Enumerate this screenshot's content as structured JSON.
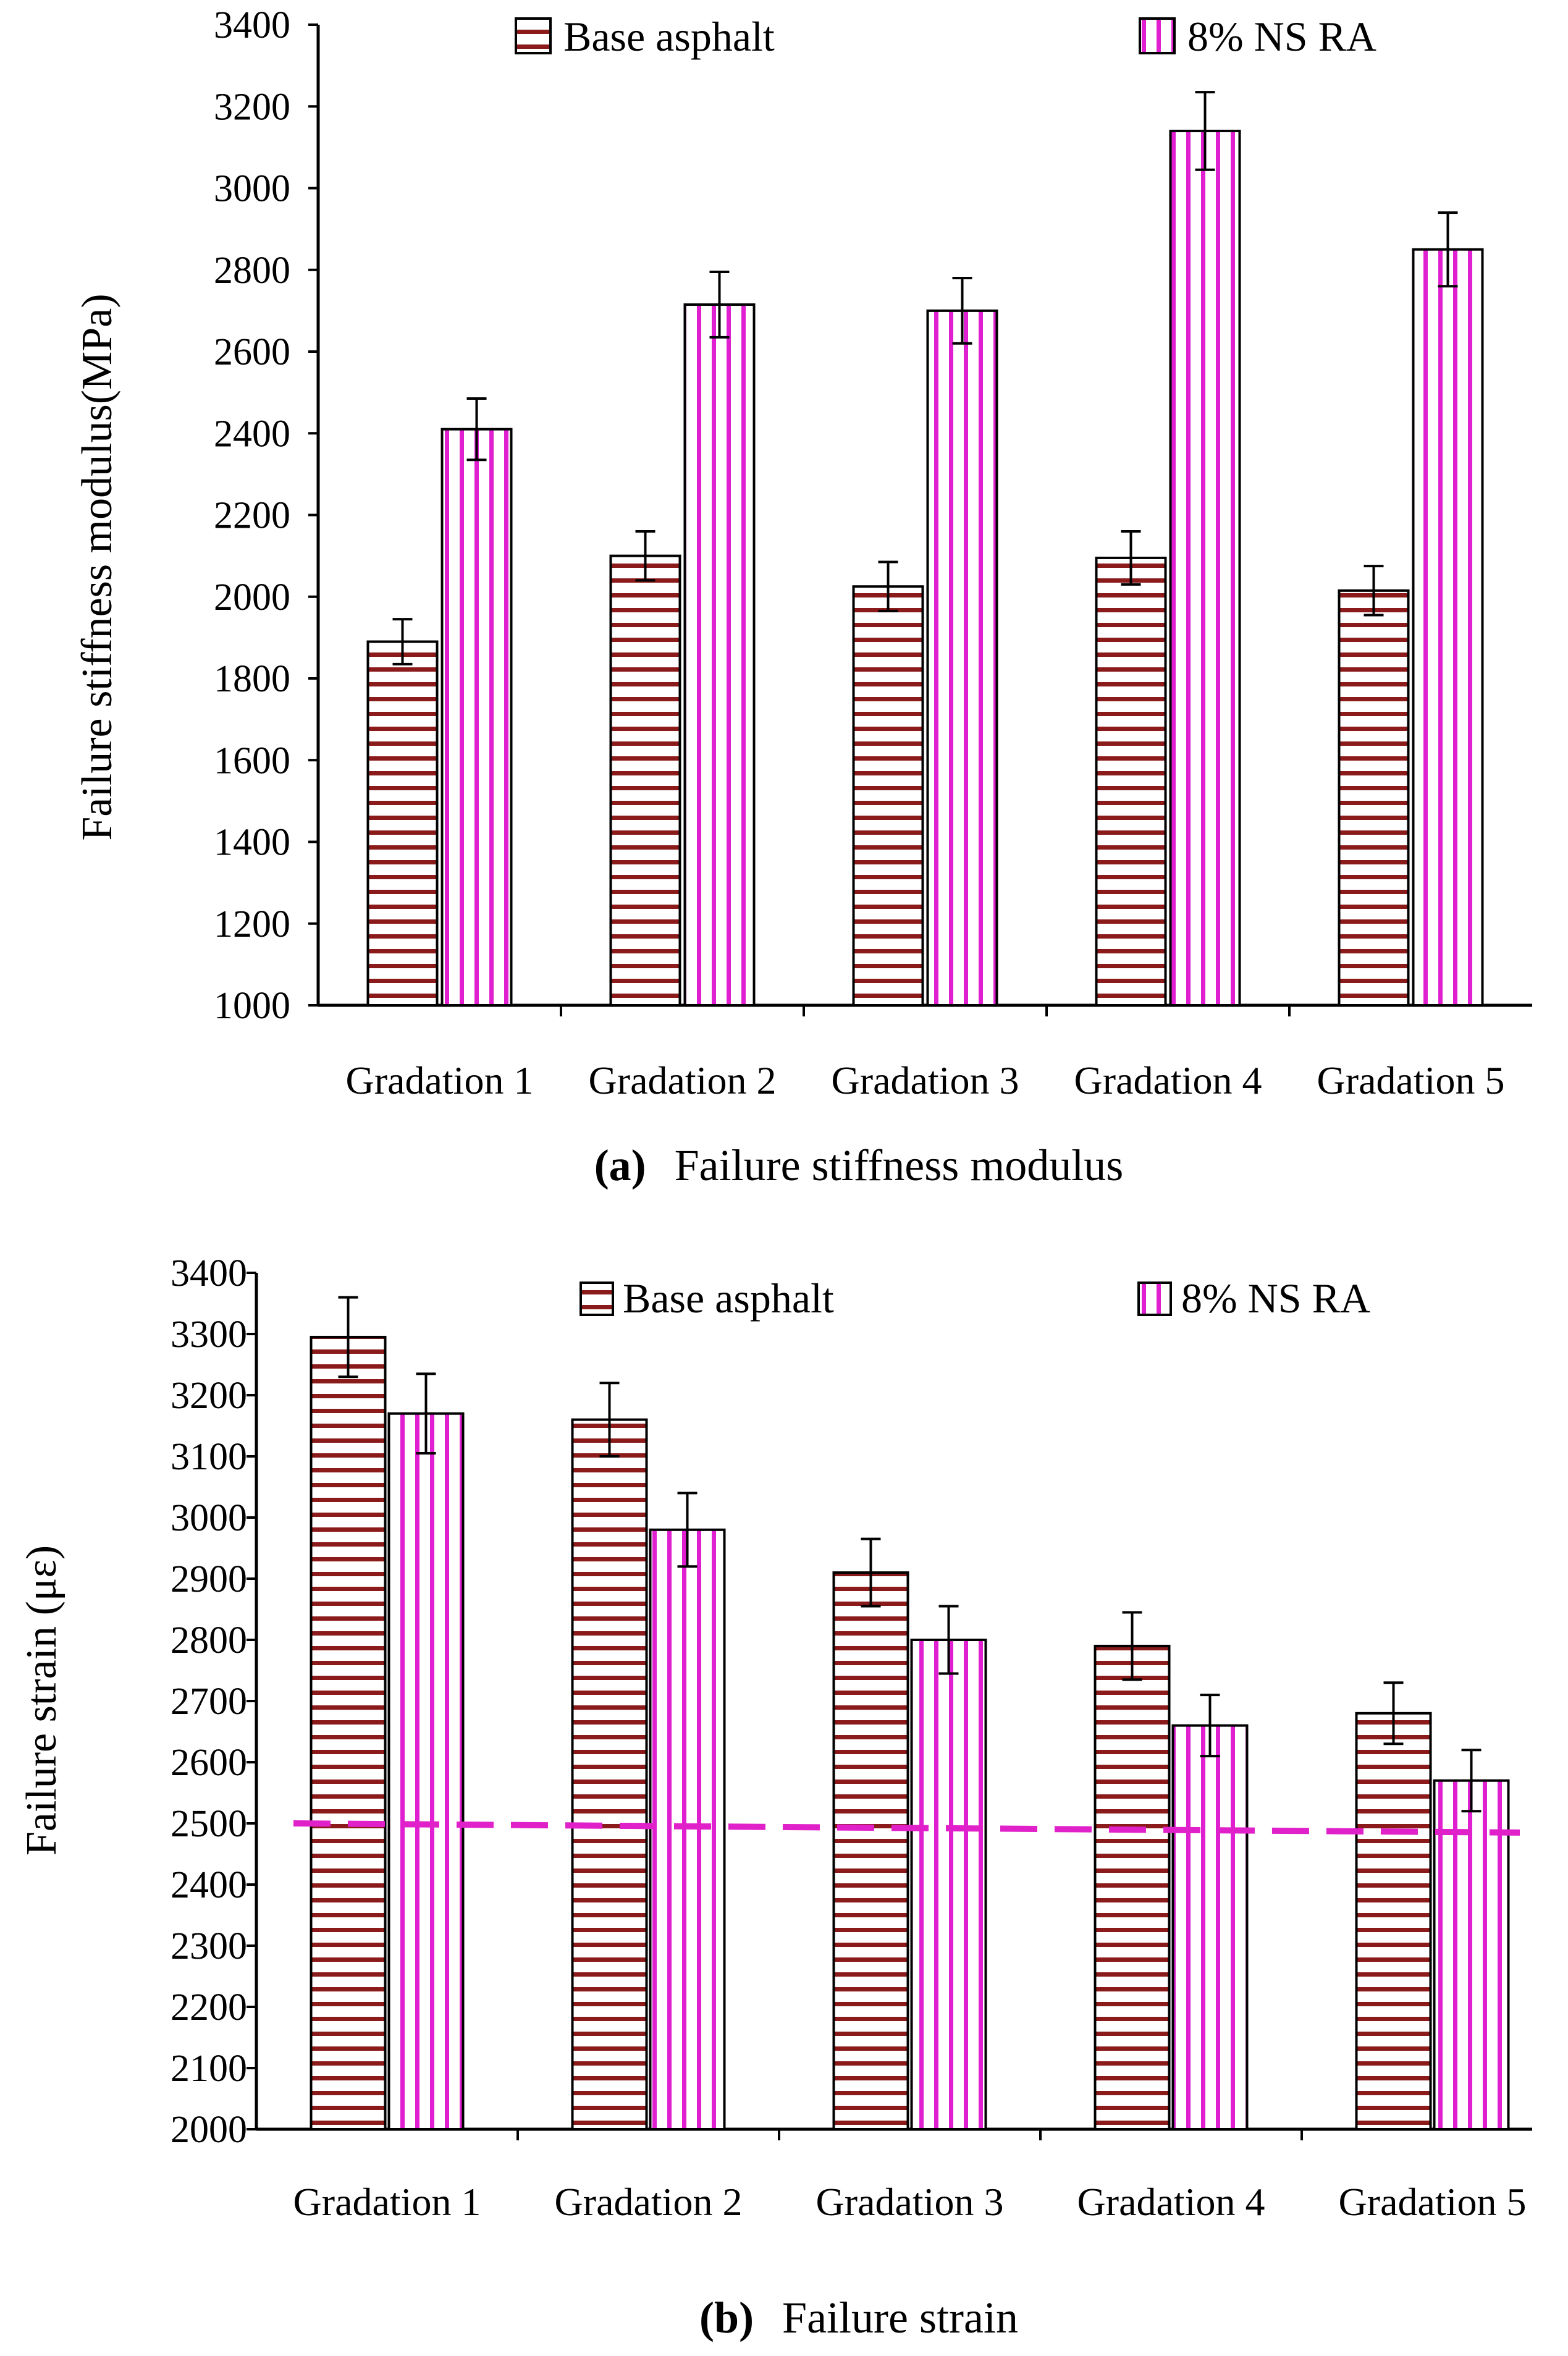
{
  "colors": {
    "base": "#8b1a1a",
    "ns": "#e020d0",
    "threshold": "#e020c8",
    "error": "#000000"
  },
  "chart_data": [
    {
      "id": "a",
      "type": "bar",
      "categories": [
        "Gradation 1",
        "Gradation 2",
        "Gradation 3",
        "Gradation 4",
        "Gradation 5"
      ],
      "series": [
        {
          "name": "Base asphalt",
          "pattern": "horizontal-stripes",
          "values": [
            1890,
            2100,
            2025,
            2095,
            2015
          ],
          "errors": [
            55,
            60,
            60,
            65,
            60
          ]
        },
        {
          "name": "8% NS RA",
          "pattern": "vertical-stripes",
          "values": [
            2410,
            2715,
            2700,
            3140,
            2850
          ],
          "errors": [
            75,
            80,
            80,
            95,
            90
          ]
        }
      ],
      "yticks": [
        "1000",
        "1200",
        "1400",
        "1600",
        "1800",
        "2000",
        "2200",
        "2400",
        "2600",
        "2800",
        "3000",
        "3200",
        "3400"
      ],
      "ylim": [
        1000,
        3400
      ],
      "ylabel": "Failure stiffness modulus(MPa)",
      "caption_label": "(a)",
      "caption_text": "Failure stiffness modulus"
    },
    {
      "id": "b",
      "type": "bar",
      "categories": [
        "Gradation 1",
        "Gradation 2",
        "Gradation 3",
        "Gradation 4",
        "Gradation 5"
      ],
      "series": [
        {
          "name": "Base asphalt",
          "pattern": "horizontal-stripes",
          "values": [
            3295,
            3160,
            2910,
            2790,
            2680
          ],
          "errors": [
            65,
            60,
            55,
            55,
            50
          ]
        },
        {
          "name": "8% NS RA",
          "pattern": "vertical-stripes",
          "values": [
            3170,
            2980,
            2800,
            2660,
            2570
          ],
          "errors": [
            65,
            60,
            55,
            50,
            50
          ]
        }
      ],
      "yticks": [
        "2000",
        "2100",
        "2200",
        "2300",
        "2400",
        "2500",
        "2600",
        "2700",
        "2800",
        "2900",
        "3000",
        "3100",
        "3200",
        "3300",
        "3400"
      ],
      "ylim": [
        2000,
        3400
      ],
      "ylabel": "Failure strain (με)",
      "threshold": {
        "start": 2500,
        "end": 2485,
        "style": "dashed"
      },
      "caption_label": "(b)",
      "caption_text": "Failure strain"
    }
  ]
}
